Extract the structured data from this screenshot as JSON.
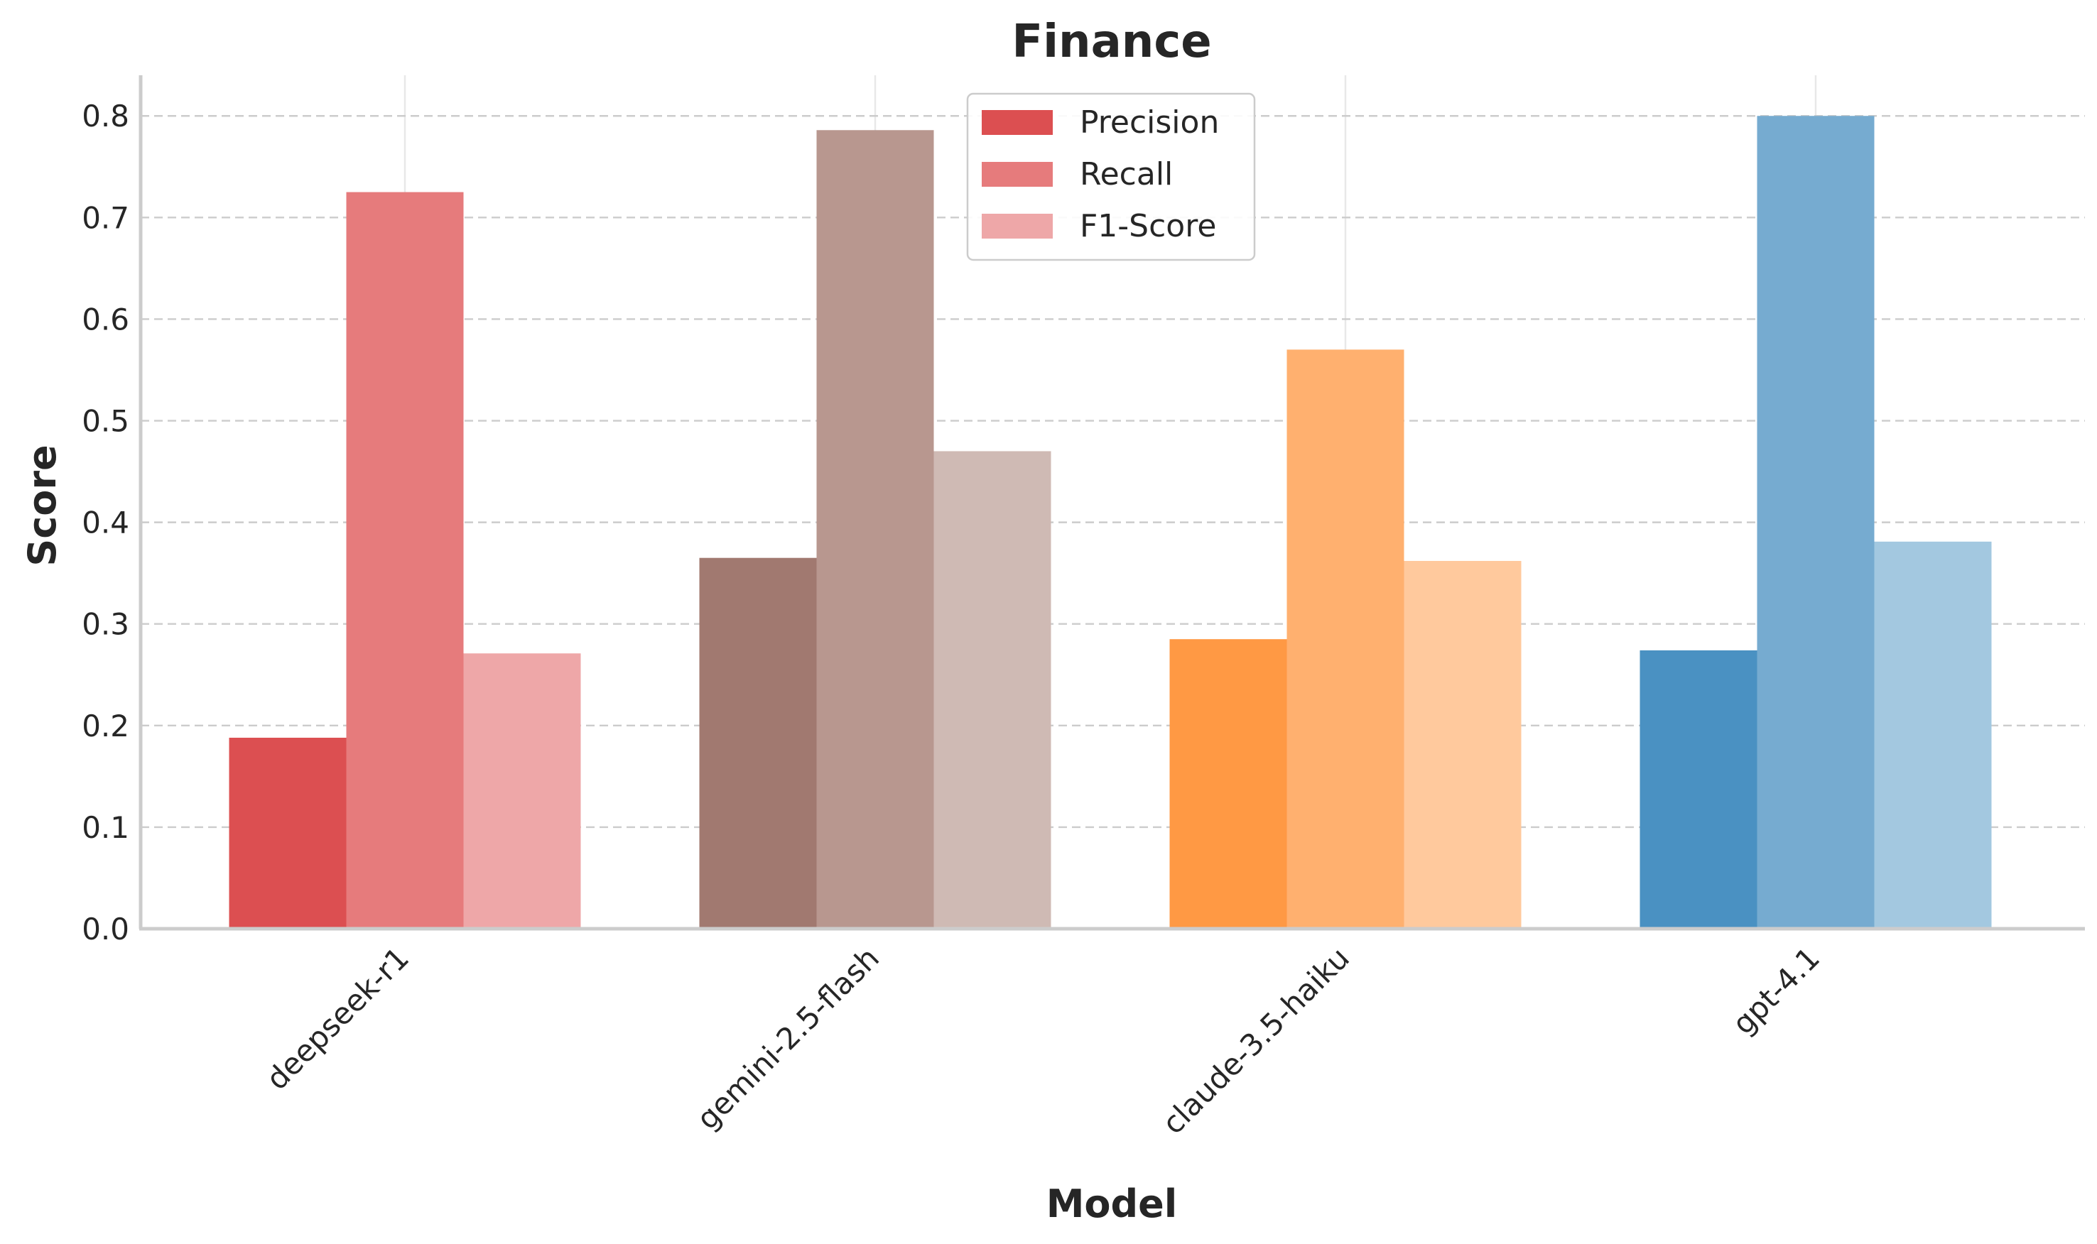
{
  "chart_data": {
    "type": "bar",
    "title": "Finance",
    "xlabel": "Model",
    "ylabel": "Score",
    "ylim": [
      0,
      0.84
    ],
    "yticks": [
      "0.0",
      "0.1",
      "0.2",
      "0.3",
      "0.4",
      "0.5",
      "0.6",
      "0.7",
      "0.8"
    ],
    "grid": true,
    "legend_position": "top-center",
    "categories": [
      "deepseek-r1",
      "gemini-2.5-flash",
      "claude-3.5-haiku",
      "gpt-4.1"
    ],
    "series": [
      {
        "name": "Precision",
        "values": [
          0.188,
          0.365,
          0.285,
          0.274
        ]
      },
      {
        "name": "Recall",
        "values": [
          0.725,
          0.786,
          0.57,
          0.8
        ]
      },
      {
        "name": "F1-Score",
        "values": [
          0.271,
          0.47,
          0.362,
          0.381
        ]
      }
    ],
    "bar_colors": [
      [
        "#dc4f51",
        "#e67b7c",
        "#eea7a8"
      ],
      [
        "#a17970",
        "#b8978f",
        "#cfbab4"
      ],
      [
        "#ff9944",
        "#ffb06f",
        "#ffc99d"
      ],
      [
        "#4a91c2",
        "#76abd0",
        "#a3c8e0"
      ]
    ],
    "legend_colors": [
      "#dc4f51",
      "#e67b7c",
      "#eea7a8"
    ]
  }
}
